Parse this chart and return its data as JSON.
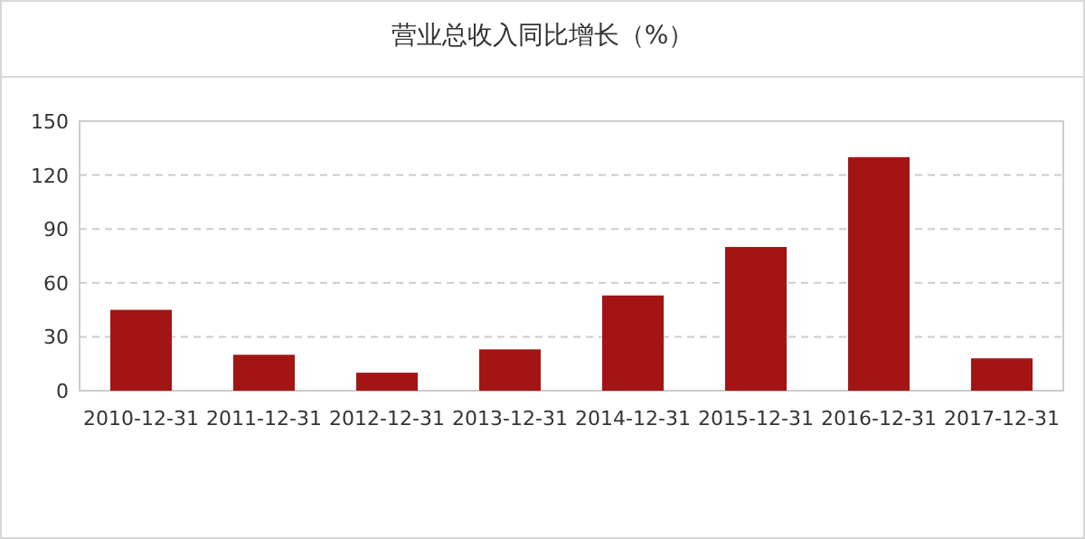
{
  "chart_data": {
    "type": "bar",
    "title": "营业总收入同比增长（%）",
    "categories": [
      "2010-12-31",
      "2011-12-31",
      "2012-12-31",
      "2013-12-31",
      "2014-12-31",
      "2015-12-31",
      "2016-12-31",
      "2017-12-31"
    ],
    "values": [
      45,
      20,
      10,
      23,
      53,
      80,
      130,
      18
    ],
    "color": "#a31515",
    "ylim": [
      0,
      150
    ],
    "yticks": [
      0,
      30,
      60,
      90,
      120,
      150
    ],
    "grid": "y"
  }
}
